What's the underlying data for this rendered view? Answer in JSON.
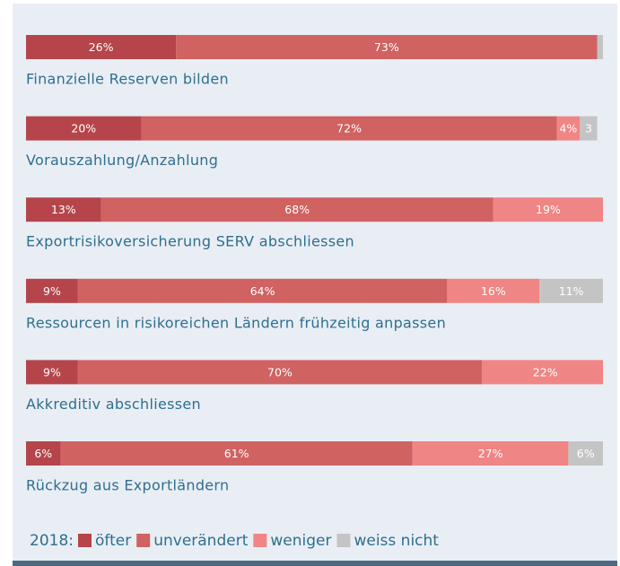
{
  "chart_data": {
    "type": "stacked_bar_horizontal",
    "categories": [
      "Finanzielle Reserven bilden",
      "Vorauszahlung/Anzahlung",
      "Exportrisikoversicherung SERV abschliessen",
      "Ressourcen in risikoreichen Ländern frühzeitig anpassen",
      "Akkreditiv abschliessen",
      "Rückzug aus Exportländern"
    ],
    "series": [
      {
        "name": "öfter",
        "color": "#b5454a",
        "values": [
          26,
          20,
          13,
          9,
          9,
          6
        ],
        "value_labels": [
          "26%",
          "20%",
          "13%",
          "9%",
          "9%",
          "6%"
        ]
      },
      {
        "name": "unverändert",
        "color": "#d06262",
        "values": [
          73,
          72,
          68,
          64,
          70,
          61
        ],
        "value_labels": [
          "73%",
          "72%",
          "68%",
          "64%",
          "70%",
          "61%"
        ]
      },
      {
        "name": "weniger",
        "color": "#f08585",
        "values": [
          null,
          4,
          19,
          16,
          22,
          27
        ],
        "value_labels": [
          null,
          "4%",
          "19%",
          "16%",
          "22%",
          "27%"
        ]
      },
      {
        "name": "weiss nicht",
        "color": "#c4c4c4",
        "values": [
          1,
          3,
          null,
          11,
          null,
          6
        ],
        "value_labels": [
          null,
          "3",
          null,
          "11%",
          null,
          "6%"
        ]
      }
    ],
    "xlim": [
      0,
      100
    ],
    "legend_title": "2018:",
    "legend": "bottom-left"
  }
}
